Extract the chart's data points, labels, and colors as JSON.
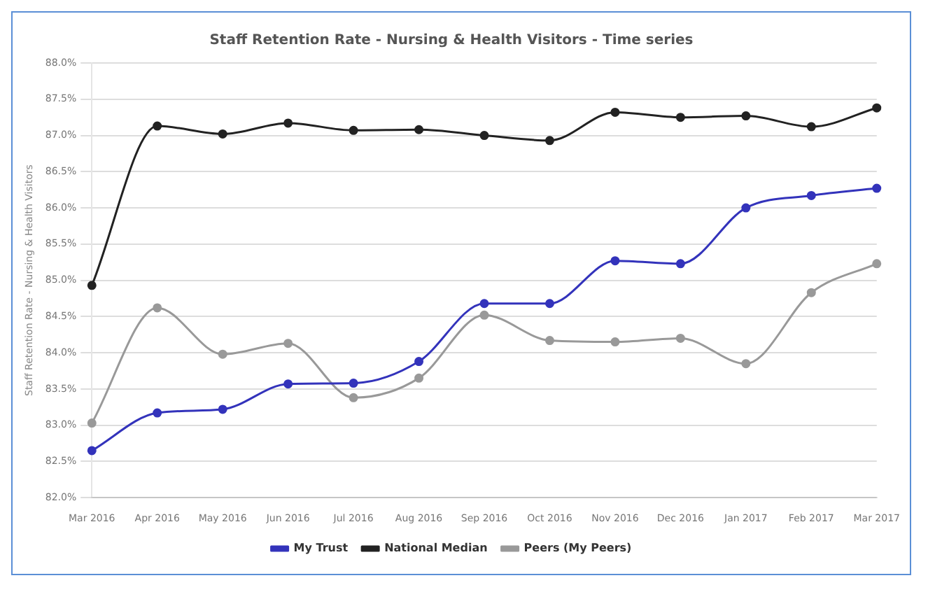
{
  "chart_data": {
    "type": "line",
    "title": "Staff Retention Rate - Nursing & Health Visitors - Time series",
    "ylabel": "Staff Retention Rate - Nursing & Health Visitors",
    "categories": [
      "Mar 2016",
      "Apr 2016",
      "May 2016",
      "Jun 2016",
      "Jul 2016",
      "Aug 2016",
      "Sep 2016",
      "Oct 2016",
      "Nov 2016",
      "Dec 2016",
      "Jan 2017",
      "Feb 2017",
      "Mar 2017"
    ],
    "series": [
      {
        "name": "My Trust",
        "color": "#3333bb",
        "values": [
          82.65,
          83.17,
          83.22,
          83.57,
          83.58,
          83.88,
          84.68,
          84.68,
          85.27,
          85.23,
          86.0,
          86.17,
          86.27
        ]
      },
      {
        "name": "National Median",
        "color": "#222222",
        "values": [
          84.93,
          87.13,
          87.02,
          87.17,
          87.07,
          87.08,
          87.0,
          86.93,
          87.32,
          87.25,
          87.27,
          87.12,
          87.38
        ]
      },
      {
        "name": "Peers (My Peers)",
        "color": "#999999",
        "values": [
          83.03,
          84.62,
          83.98,
          84.13,
          83.38,
          83.65,
          84.52,
          84.17,
          84.15,
          84.2,
          83.85,
          84.83,
          85.23
        ]
      }
    ],
    "ylim": [
      82,
      88
    ],
    "yticks": [
      {
        "value": 82,
        "label": "82.0%"
      },
      {
        "value": 82.5,
        "label": "82.5%"
      },
      {
        "value": 83,
        "label": "83.0%"
      },
      {
        "value": 83.5,
        "label": "83.5%"
      },
      {
        "value": 84,
        "label": "84.0%"
      },
      {
        "value": 84.5,
        "label": "84.5%"
      },
      {
        "value": 85,
        "label": "85.0%"
      },
      {
        "value": 85.5,
        "label": "85.5%"
      },
      {
        "value": 86,
        "label": "86.0%"
      },
      {
        "value": 86.5,
        "label": "86.5%"
      },
      {
        "value": 87,
        "label": "87.0%"
      },
      {
        "value": 87.5,
        "label": "87.5%"
      },
      {
        "value": 88,
        "label": "88.0%"
      }
    ],
    "grid": "y",
    "legend": "bottom",
    "marker": "circle",
    "line_style": "solid"
  }
}
